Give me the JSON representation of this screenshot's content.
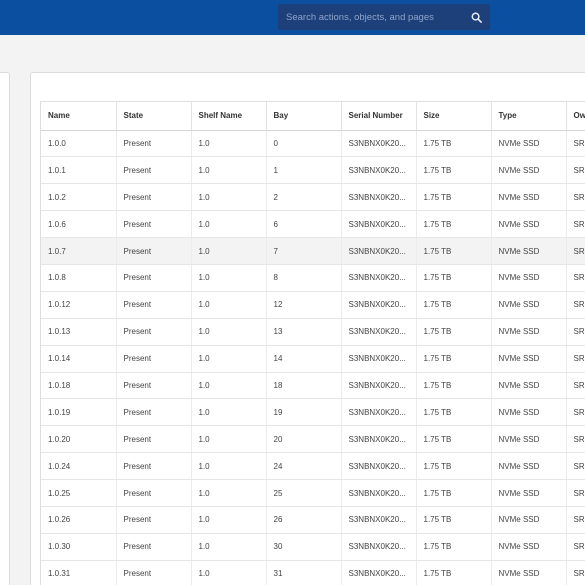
{
  "header": {
    "search_placeholder": "Search actions, objects, and pages",
    "search_icon": "search-icon"
  },
  "table": {
    "columns": [
      "Name",
      "State",
      "Shelf Name",
      "Bay",
      "Serial Number",
      "Size",
      "Type",
      "Owner"
    ],
    "header_visible": [
      "Name",
      "State",
      "Shelf Name",
      "Bay",
      "Serial Number",
      "Size",
      "Type",
      "Ow"
    ],
    "selected_row": "1.0.7",
    "rows": [
      {
        "name": "1.0.0",
        "state": "Present",
        "shelf": "1.0",
        "bay": "0",
        "serial": "S3NBNX0K20...",
        "size": "1.75 TB",
        "type": "NVMe SSD",
        "owner": "SR-"
      },
      {
        "name": "1.0.1",
        "state": "Present",
        "shelf": "1.0",
        "bay": "1",
        "serial": "S3NBNX0K20...",
        "size": "1.75 TB",
        "type": "NVMe SSD",
        "owner": "SR-"
      },
      {
        "name": "1.0.2",
        "state": "Present",
        "shelf": "1.0",
        "bay": "2",
        "serial": "S3NBNX0K20...",
        "size": "1.75 TB",
        "type": "NVMe SSD",
        "owner": "SR-"
      },
      {
        "name": "1.0.6",
        "state": "Present",
        "shelf": "1.0",
        "bay": "6",
        "serial": "S3NBNX0K20...",
        "size": "1.75 TB",
        "type": "NVMe SSD",
        "owner": "SR-"
      },
      {
        "name": "1.0.7",
        "state": "Present",
        "shelf": "1.0",
        "bay": "7",
        "serial": "S3NBNX0K20...",
        "size": "1.75 TB",
        "type": "NVMe SSD",
        "owner": "SR-"
      },
      {
        "name": "1.0.8",
        "state": "Present",
        "shelf": "1.0",
        "bay": "8",
        "serial": "S3NBNX0K20...",
        "size": "1.75 TB",
        "type": "NVMe SSD",
        "owner": "SR-"
      },
      {
        "name": "1.0.12",
        "state": "Present",
        "shelf": "1.0",
        "bay": "12",
        "serial": "S3NBNX0K20...",
        "size": "1.75 TB",
        "type": "NVMe SSD",
        "owner": "SR-"
      },
      {
        "name": "1.0.13",
        "state": "Present",
        "shelf": "1.0",
        "bay": "13",
        "serial": "S3NBNX0K20...",
        "size": "1.75 TB",
        "type": "NVMe SSD",
        "owner": "SR-"
      },
      {
        "name": "1.0.14",
        "state": "Present",
        "shelf": "1.0",
        "bay": "14",
        "serial": "S3NBNX0K20...",
        "size": "1.75 TB",
        "type": "NVMe SSD",
        "owner": "SR-"
      },
      {
        "name": "1.0.18",
        "state": "Present",
        "shelf": "1.0",
        "bay": "18",
        "serial": "S3NBNX0K20...",
        "size": "1.75 TB",
        "type": "NVMe SSD",
        "owner": "SR-"
      },
      {
        "name": "1.0.19",
        "state": "Present",
        "shelf": "1.0",
        "bay": "19",
        "serial": "S3NBNX0K20...",
        "size": "1.75 TB",
        "type": "NVMe SSD",
        "owner": "SR-"
      },
      {
        "name": "1.0.20",
        "state": "Present",
        "shelf": "1.0",
        "bay": "20",
        "serial": "S3NBNX0K20...",
        "size": "1.75 TB",
        "type": "NVMe SSD",
        "owner": "SR-"
      },
      {
        "name": "1.0.24",
        "state": "Present",
        "shelf": "1.0",
        "bay": "24",
        "serial": "S3NBNX0K20...",
        "size": "1.75 TB",
        "type": "NVMe SSD",
        "owner": "SR-"
      },
      {
        "name": "1.0.25",
        "state": "Present",
        "shelf": "1.0",
        "bay": "25",
        "serial": "S3NBNX0K20...",
        "size": "1.75 TB",
        "type": "NVMe SSD",
        "owner": "SR-"
      },
      {
        "name": "1.0.26",
        "state": "Present",
        "shelf": "1.0",
        "bay": "26",
        "serial": "S3NBNX0K20...",
        "size": "1.75 TB",
        "type": "NVMe SSD",
        "owner": "SR-"
      },
      {
        "name": "1.0.30",
        "state": "Present",
        "shelf": "1.0",
        "bay": "30",
        "serial": "S3NBNX0K20...",
        "size": "1.75 TB",
        "type": "NVMe SSD",
        "owner": "SR-"
      },
      {
        "name": "1.0.31",
        "state": "Present",
        "shelf": "1.0",
        "bay": "31",
        "serial": "S3NBNX0K20...",
        "size": "1.75 TB",
        "type": "NVMe SSD",
        "owner": "SR-"
      }
    ]
  },
  "colors": {
    "header_bg": "#0b4fa0",
    "search_bg": "#1d3f7a",
    "page_bg": "#f3f3f3",
    "selected_row_bg": "#f3f3f3"
  }
}
